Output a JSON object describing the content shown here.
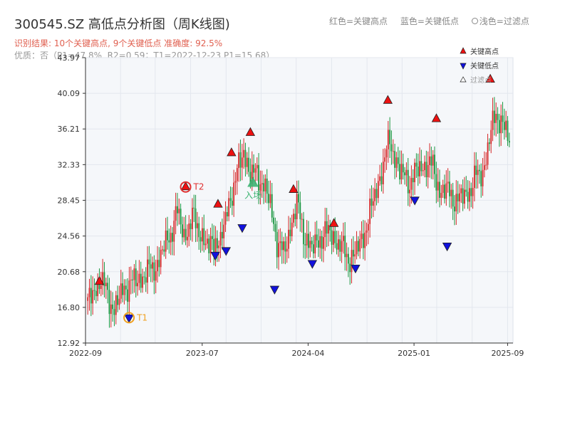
{
  "header": {
    "title": "300545.SZ 高低点分析图（周K线图)",
    "result": "识别结果: 10个关键高点, 9个关键低点  准确度: 92.5%",
    "quality": "优质：否（P1=47.8%, R2=0.59；T1=2022-12-23 P1=15.68）",
    "legend_red": "红色=关键高点",
    "legend_blue": "蓝色=关键低点",
    "legend_light": "浅色=过滤点"
  },
  "chart_data": {
    "type": "candlestick",
    "title": "300545.SZ 高低点分析图（周K线图)",
    "x_start": "2022-09",
    "x_end": "2025-09",
    "xticks": [
      "2022-09",
      "2023-07",
      "2024-04",
      "2025-01",
      "2025-09"
    ],
    "ylim": [
      12.92,
      43.97
    ],
    "yticks": [
      "12.92",
      "16.80",
      "20.68",
      "24.56",
      "28.45",
      "32.33",
      "36.21",
      "40.09",
      "43.97"
    ],
    "grid": true,
    "legend": {
      "position": "top-right",
      "entries": [
        "关键高点",
        "关键低点",
        "过滤点"
      ]
    },
    "up_color": "#d62728",
    "down_color": "#1a9640",
    "price_path": [
      [
        0,
        17.0
      ],
      [
        3,
        18.5
      ],
      [
        8,
        19.8
      ],
      [
        16,
        16.5
      ],
      [
        22,
        19.0
      ],
      [
        32,
        20.0
      ],
      [
        42,
        21.5
      ],
      [
        50,
        25.0
      ],
      [
        54,
        27.2
      ],
      [
        58,
        24.5
      ],
      [
        63,
        26.5
      ],
      [
        68,
        25.0
      ],
      [
        73,
        23.0
      ],
      [
        77,
        24.5
      ],
      [
        80,
        23.5
      ],
      [
        84,
        27.5
      ],
      [
        88,
        30.0
      ],
      [
        94,
        34.0
      ],
      [
        98,
        31.0
      ],
      [
        102,
        31.5
      ],
      [
        106,
        30.0
      ],
      [
        110,
        28.0
      ],
      [
        114,
        24.0
      ],
      [
        118,
        22.5
      ],
      [
        122,
        25.5
      ],
      [
        126,
        28.0
      ],
      [
        130,
        25.0
      ],
      [
        135,
        23.0
      ],
      [
        140,
        24.5
      ],
      [
        146,
        25.0
      ],
      [
        152,
        23.5
      ],
      [
        158,
        22.0
      ],
      [
        164,
        23.5
      ],
      [
        170,
        27.0
      ],
      [
        176,
        31.0
      ],
      [
        182,
        35.0
      ],
      [
        188,
        31.5
      ],
      [
        194,
        30.5
      ],
      [
        198,
        31.5
      ],
      [
        204,
        32.5
      ],
      [
        208,
        32.0
      ],
      [
        212,
        29.5
      ],
      [
        216,
        29.5
      ],
      [
        222,
        28.5
      ],
      [
        228,
        29.0
      ],
      [
        234,
        31.0
      ],
      [
        238,
        31.5
      ],
      [
        242,
        35.0
      ],
      [
        246,
        38.0
      ],
      [
        252,
        36.0
      ],
      [
        254,
        34.5
      ]
    ],
    "key_highs": [
      {
        "date": "2022-10-07",
        "price": 19.6
      },
      {
        "date": "2023-05-19",
        "price": 29.9
      },
      {
        "date": "2023-08-11",
        "price": 28.0
      },
      {
        "date": "2023-09-15",
        "price": 33.6
      },
      {
        "date": "2023-11-03",
        "price": 35.8
      },
      {
        "date": "2024-02-23",
        "price": 29.6
      },
      {
        "date": "2024-06-07",
        "price": 25.9
      },
      {
        "date": "2024-10-25",
        "price": 39.3
      },
      {
        "date": "2025-02-28",
        "price": 37.3
      },
      {
        "date": "2025-07-18",
        "price": 41.6
      }
    ],
    "key_lows": [
      {
        "date": "2022-12-23",
        "price": 15.68
      },
      {
        "date": "2023-08-04",
        "price": 22.5
      },
      {
        "date": "2023-09-01",
        "price": 23.0
      },
      {
        "date": "2023-10-13",
        "price": 25.5
      },
      {
        "date": "2024-01-05",
        "price": 18.8
      },
      {
        "date": "2024-04-12",
        "price": 21.6
      },
      {
        "date": "2024-08-02",
        "price": 21.1
      },
      {
        "date": "2025-01-03",
        "price": 28.5
      },
      {
        "date": "2025-03-28",
        "price": 23.5
      }
    ],
    "annotations": [
      {
        "label": "T1",
        "date": "2022-12-23",
        "price": 15.68,
        "color": "#f0a020"
      },
      {
        "label": "T2",
        "date": "2023-05-19",
        "price": 29.9,
        "color": "#e03030"
      },
      {
        "label": "入场",
        "date": "2023-11-10",
        "price": 30.3,
        "color": "#3cb371"
      }
    ]
  }
}
